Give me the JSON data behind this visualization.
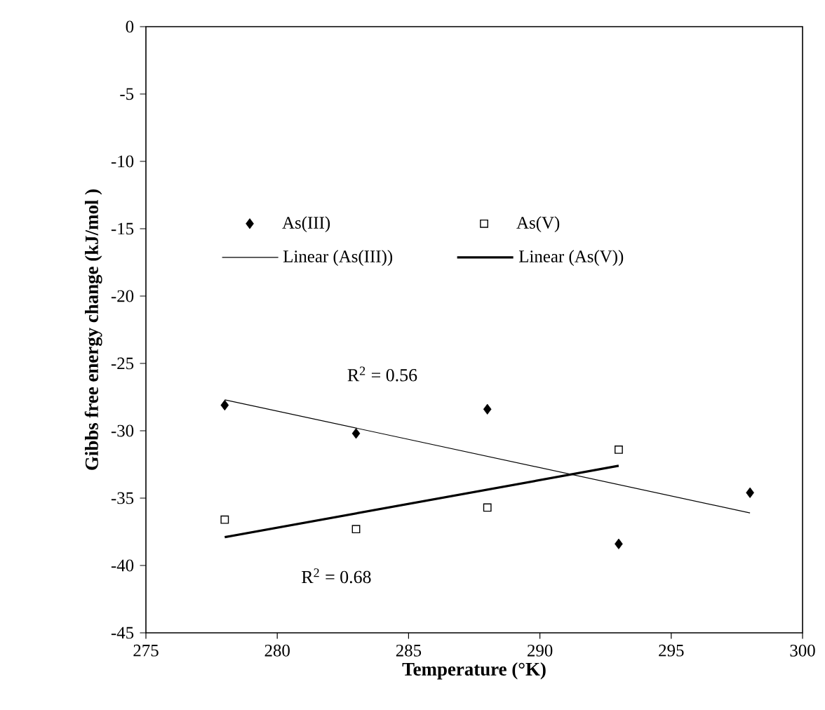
{
  "chart_data": {
    "type": "scatter",
    "xlabel": "Temperature (°K)",
    "ylabel": "Gibbs free energy change (kJ/mol )",
    "xlim": [
      275,
      300
    ],
    "xticks": [
      275,
      280,
      285,
      290,
      295,
      300
    ],
    "ylim": [
      -45,
      0
    ],
    "yticks": [
      -45,
      -40,
      -35,
      -30,
      -25,
      -20,
      -15,
      -10,
      -5,
      0
    ],
    "grid": false,
    "legend": "top",
    "series": [
      {
        "name": "As(III)",
        "marker": "diamond",
        "color": "#000000",
        "x": [
          278,
          283,
          288,
          293,
          298
        ],
        "values": [
          -28.1,
          -30.2,
          -28.4,
          -38.4,
          -34.6
        ]
      },
      {
        "name": "As(V)",
        "marker": "square",
        "color": "#000000",
        "x": [
          278,
          283,
          288,
          293
        ],
        "values": [
          -36.6,
          -37.3,
          -35.7,
          -31.4
        ]
      },
      {
        "name": "Linear (As(III))",
        "type": "line",
        "marker": "none",
        "color": "#000000",
        "x": [
          278,
          298
        ],
        "values": [
          -27.7,
          -36.1
        ]
      },
      {
        "name": "Linear (As(V))",
        "type": "line",
        "marker": "none",
        "color": "#000000",
        "x": [
          278,
          293
        ],
        "values": [
          -37.9,
          -32.6
        ]
      }
    ],
    "annotations": [
      "R$^{2}$ = 0.56",
      "R$^{2}$ = 0.68"
    ]
  }
}
